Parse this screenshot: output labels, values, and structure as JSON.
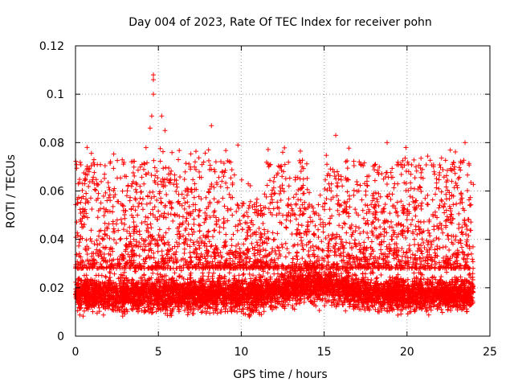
{
  "chart_data": {
    "type": "scatter",
    "title": "Day 004 of 2023, Rate Of TEC Index for receiver pohn",
    "xlabel": "GPS time / hours",
    "ylabel": "ROTI / TECUs",
    "xlim": [
      0,
      25
    ],
    "ylim": [
      0,
      0.12
    ],
    "x_ticks": [
      0,
      5,
      10,
      15,
      20,
      25
    ],
    "x_tick_labels": [
      "0",
      "5",
      "10",
      "15",
      "20",
      "25"
    ],
    "y_ticks": [
      0,
      0.02,
      0.04,
      0.06,
      0.08,
      0.1,
      0.12
    ],
    "y_tick_labels": [
      "0",
      "0.02",
      "0.04",
      "0.06",
      "0.08",
      "0.1",
      "0.12"
    ],
    "grid": true,
    "marker": "+",
    "series": [
      {
        "name": "ROTI",
        "color": "#ff0000",
        "x_range": [
          0,
          24
        ],
        "typical_band": [
          0.01,
          0.03
        ],
        "outliers": [
          {
            "x": 4.7,
            "y": 0.108
          },
          {
            "x": 4.7,
            "y": 0.106
          },
          {
            "x": 4.7,
            "y": 0.1
          },
          {
            "x": 5.2,
            "y": 0.091
          },
          {
            "x": 4.6,
            "y": 0.091
          },
          {
            "x": 4.5,
            "y": 0.086
          },
          {
            "x": 5.4,
            "y": 0.085
          },
          {
            "x": 8.2,
            "y": 0.087
          },
          {
            "x": 15.7,
            "y": 0.083
          },
          {
            "x": 18.8,
            "y": 0.08
          },
          {
            "x": 23.5,
            "y": 0.08
          },
          {
            "x": 0.7,
            "y": 0.078
          },
          {
            "x": 9.8,
            "y": 0.079
          },
          {
            "x": 12.5,
            "y": 0.076
          }
        ]
      }
    ]
  }
}
